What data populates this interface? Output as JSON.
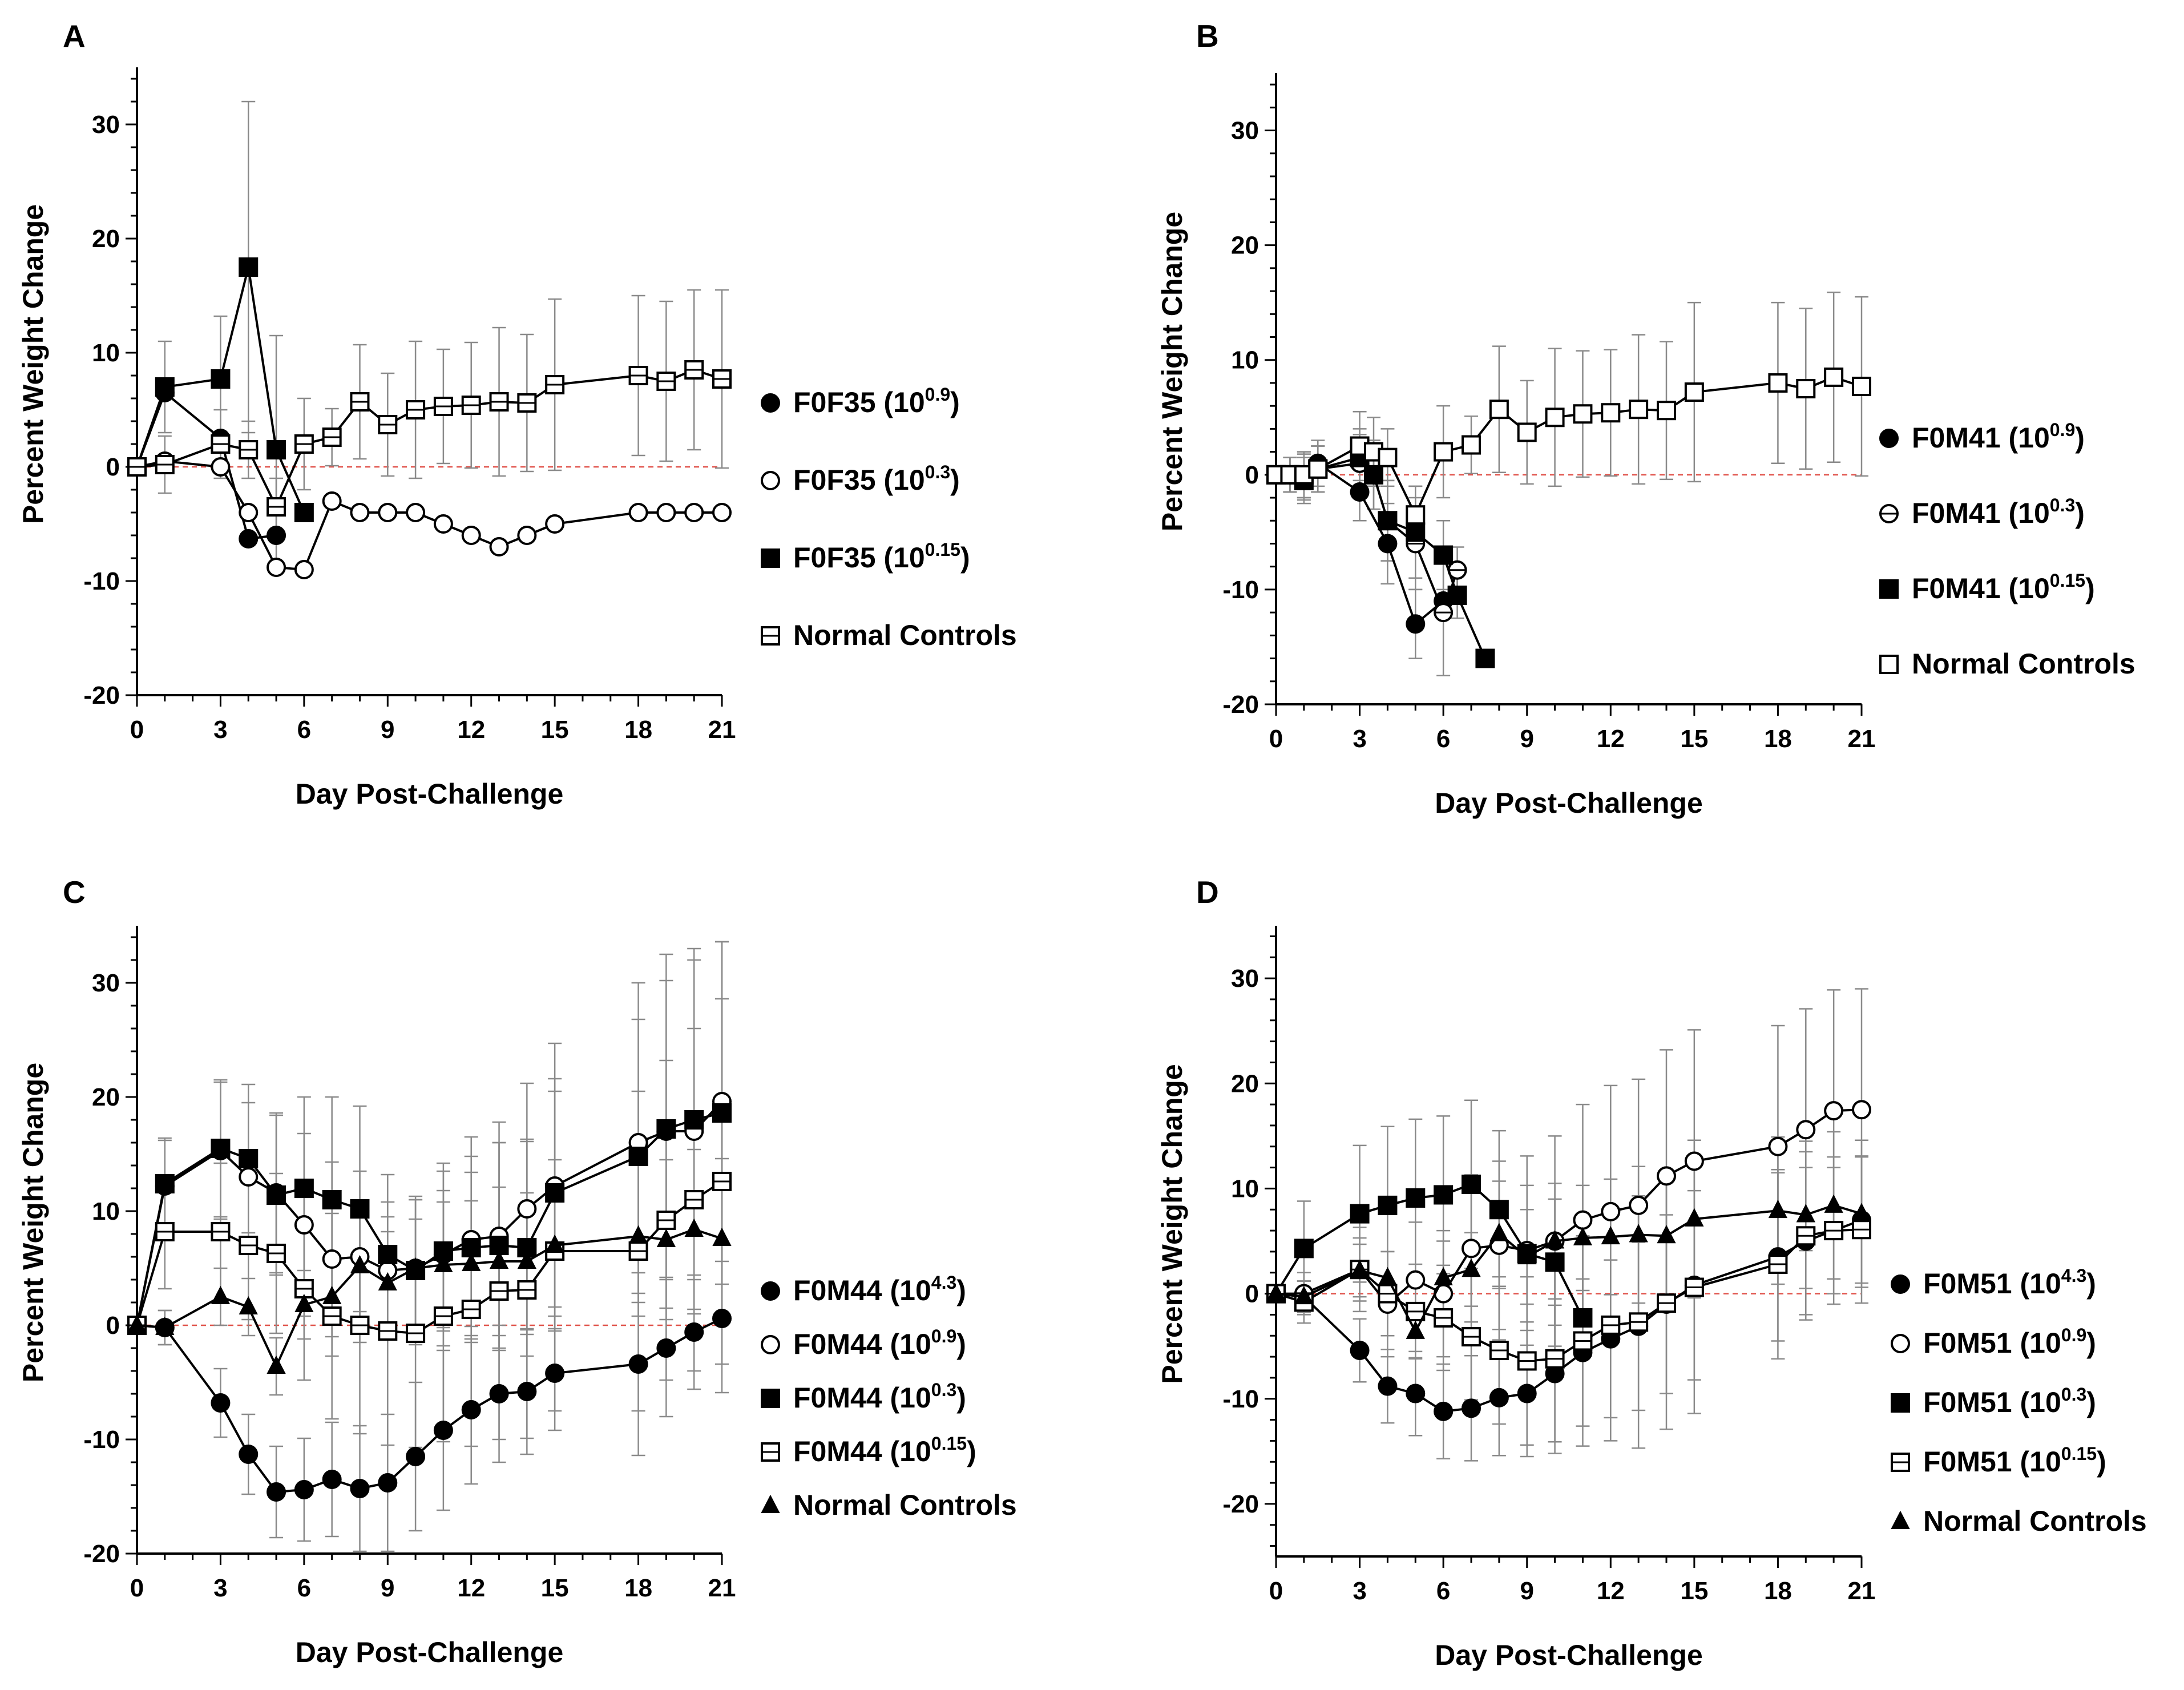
{
  "figure": {
    "panels": [
      "A",
      "B",
      "C",
      "D"
    ]
  },
  "chart_data": [
    {
      "panel": "A",
      "type": "line",
      "xlabel": "Day Post-Challenge",
      "ylabel": "Percent Weight Change",
      "xlim": [
        0,
        21
      ],
      "ylim": [
        -20,
        35
      ],
      "xticks": [
        0,
        3,
        6,
        9,
        12,
        15,
        18,
        21
      ],
      "yticks": [
        -20,
        -10,
        0,
        10,
        20,
        30
      ],
      "reference_line": 0,
      "series": [
        {
          "name": "F0F35",
          "exponent": "0.9",
          "marker": "filled-circle",
          "x": [
            0,
            1,
            3,
            4,
            5
          ],
          "y": [
            0,
            6.5,
            2.5,
            -6.3,
            -6
          ]
        },
        {
          "name": "F0F35",
          "exponent": "0.3",
          "marker": "open-circle",
          "x": [
            0,
            1,
            3,
            4,
            5,
            6,
            7,
            8,
            9,
            10,
            11,
            12,
            13,
            14,
            15,
            18,
            19,
            20,
            21
          ],
          "y": [
            0,
            0.5,
            0,
            -4,
            -8.8,
            -9,
            -3,
            -4,
            -4,
            -4,
            -5,
            -6,
            -7,
            -6,
            -5,
            -4,
            -4,
            -4,
            -4
          ],
          "err": [
            0,
            0,
            0,
            0,
            0,
            0,
            0,
            0,
            0,
            0,
            0,
            0,
            0,
            0,
            0,
            0,
            0,
            0,
            0
          ]
        },
        {
          "name": "F0F35",
          "exponent": "0.15",
          "marker": "filled-square",
          "x": [
            0,
            1,
            3,
            4,
            5,
            6
          ],
          "y": [
            0,
            7,
            7.7,
            17.5,
            1.5,
            -4
          ],
          "err": [
            0,
            4,
            5.5,
            14.5,
            10,
            0
          ]
        },
        {
          "name": "Normal Controls",
          "exponent": "",
          "marker": "crossed-square",
          "x": [
            0,
            1,
            3,
            4,
            5,
            6,
            7,
            8,
            9,
            10,
            11,
            12,
            13,
            14,
            15,
            18,
            19,
            20,
            21
          ],
          "y": [
            0,
            0.2,
            2,
            1.5,
            -3.5,
            2,
            2.6,
            5.7,
            3.7,
            5,
            5.3,
            5.4,
            5.7,
            5.6,
            7.2,
            8,
            7.5,
            8.5,
            7.7
          ],
          "err": [
            0,
            2.5,
            3,
            2.5,
            2.5,
            4,
            2.5,
            5,
            4.5,
            6,
            5,
            5.5,
            6.5,
            6,
            7.5,
            7,
            7,
            7,
            7.8
          ]
        }
      ]
    },
    {
      "panel": "B",
      "type": "line",
      "xlabel": "Day Post-Challenge",
      "ylabel": "Percent Weight Change",
      "xlim": [
        0,
        21
      ],
      "ylim": [
        -20,
        35
      ],
      "xticks": [
        0,
        3,
        6,
        9,
        12,
        15,
        18,
        21
      ],
      "yticks": [
        -20,
        -10,
        0,
        10,
        20,
        30
      ],
      "reference_line": 0,
      "series": [
        {
          "name": "F0M41",
          "exponent": "0.9",
          "marker": "filled-circle",
          "x": [
            0,
            0.5,
            1,
            1.5,
            3,
            4,
            5,
            6
          ],
          "y": [
            0,
            0,
            0,
            1,
            -1.5,
            -6,
            -13,
            -11
          ],
          "err": [
            0,
            1.5,
            2,
            2,
            2.5,
            3.5,
            3,
            0
          ]
        },
        {
          "name": "F0M41",
          "exponent": "0.3",
          "marker": "crossed-circle",
          "x": [
            0,
            0.5,
            1,
            1.5,
            3,
            3.5,
            4,
            5,
            6,
            6.5
          ],
          "y": [
            0,
            0,
            -0.2,
            0.5,
            1,
            0,
            -4,
            -6,
            -12,
            -8.3
          ],
          "err": [
            0,
            1.5,
            2,
            2,
            2.5,
            3,
            3.5,
            4,
            5.5,
            2
          ]
        },
        {
          "name": "F0M41",
          "exponent": "0.15",
          "marker": "filled-square",
          "x": [
            0,
            0.5,
            1,
            1.5,
            3,
            3.5,
            4,
            5,
            6,
            6.5,
            7.5
          ],
          "y": [
            0,
            0,
            -0.5,
            0.5,
            1.5,
            0,
            -4,
            -5,
            -7,
            -10.5,
            -16
          ],
          "err": [
            0,
            1.5,
            2,
            2,
            2.5,
            3,
            3.5,
            4,
            3,
            2,
            0
          ]
        },
        {
          "name": "Normal Controls",
          "exponent": "",
          "marker": "open-square",
          "x": [
            0,
            0.5,
            1,
            1.5,
            3,
            3.5,
            4,
            5,
            6,
            7,
            8,
            9,
            10,
            11,
            12,
            13,
            14,
            15,
            18,
            19,
            20,
            21
          ],
          "y": [
            0,
            0,
            0,
            0.5,
            2.5,
            2,
            1.5,
            -3.5,
            2,
            2.6,
            5.7,
            3.7,
            5,
            5.3,
            5.4,
            5.7,
            5.6,
            7.2,
            8,
            7.5,
            8.5,
            7.7
          ],
          "err": [
            0,
            1.5,
            2,
            2,
            3,
            3,
            2.5,
            2.5,
            4,
            2.5,
            5.5,
            4.5,
            6,
            5.5,
            5.5,
            6.5,
            6,
            7.8,
            7,
            7,
            7.4,
            7.8
          ]
        }
      ]
    },
    {
      "panel": "C",
      "type": "line",
      "xlabel": "Day Post-Challenge",
      "ylabel": "Percent Weight Change",
      "xlim": [
        0,
        21
      ],
      "ylim": [
        -20,
        35
      ],
      "xticks": [
        0,
        3,
        6,
        9,
        12,
        15,
        18,
        21
      ],
      "yticks": [
        -20,
        -10,
        0,
        10,
        20,
        30
      ],
      "reference_line": 0,
      "series": [
        {
          "name": "F0M44",
          "exponent": "4.3",
          "marker": "filled-circle",
          "x": [
            0,
            1,
            3,
            4,
            5,
            6,
            7,
            8,
            9,
            10,
            11,
            12,
            13,
            14,
            15,
            18,
            19,
            20,
            21
          ],
          "y": [
            0,
            -0.2,
            -6.8,
            -11.3,
            -14.6,
            -14.4,
            -13.5,
            -14.3,
            -13.8,
            -11.5,
            -9.2,
            -7.4,
            -6,
            -5.8,
            -4.2,
            -3.4,
            -2,
            -0.6,
            0.6
          ],
          "err": [
            0,
            1.5,
            3,
            3.5,
            4,
            4.5,
            5,
            5.5,
            6,
            6.5,
            7,
            6.5,
            6,
            5.5,
            5,
            8,
            6,
            5,
            6.5
          ]
        },
        {
          "name": "F0M44",
          "exponent": "0.9",
          "marker": "open-circle",
          "x": [
            0,
            1,
            3,
            4,
            5,
            6,
            7,
            8,
            9,
            10,
            11,
            12,
            13,
            14,
            15,
            18,
            19,
            20,
            21
          ],
          "y": [
            0,
            12.2,
            15.3,
            13,
            11.6,
            8.8,
            5.8,
            6,
            4.8,
            5,
            6.2,
            7.5,
            7.8,
            10.2,
            12.2,
            16,
            17,
            17,
            19.6
          ],
          "err": [
            0,
            4,
            6,
            6.5,
            7,
            8,
            8.5,
            7.5,
            6,
            6,
            8,
            9,
            10,
            11,
            12.5,
            14,
            15.5,
            16,
            14
          ]
        },
        {
          "name": "F0M44",
          "exponent": "0.3",
          "marker": "filled-square",
          "x": [
            0,
            1,
            3,
            4,
            5,
            6,
            7,
            8,
            9,
            10,
            11,
            12,
            13,
            14,
            15,
            18,
            19,
            20,
            21
          ],
          "y": [
            0,
            12.4,
            15.5,
            14.6,
            11.4,
            12,
            11,
            10.2,
            6.2,
            4.8,
            6.5,
            6.8,
            7,
            6.8,
            11.6,
            14.8,
            17.2,
            18,
            18.6
          ],
          "err": [
            0,
            4,
            6,
            6.5,
            7,
            8,
            9,
            9,
            7,
            6.5,
            7,
            8,
            9,
            9.5,
            10,
            12,
            13,
            14,
            15
          ]
        },
        {
          "name": "F0M44",
          "exponent": "0.15",
          "marker": "crossed-square",
          "x": [
            0,
            1,
            3,
            4,
            5,
            6,
            7,
            8,
            9,
            10,
            11,
            12,
            13,
            14,
            15,
            18,
            19,
            20,
            21
          ],
          "y": [
            0,
            8.2,
            8.2,
            7,
            6.3,
            3.2,
            0.8,
            0,
            -0.5,
            -0.7,
            0.8,
            1.4,
            3,
            3.1,
            6.5,
            6.5,
            9.2,
            11,
            12.6
          ],
          "err": [
            0,
            5,
            6,
            6.5,
            7,
            8,
            9,
            9.5,
            10,
            10,
            11,
            12,
            13,
            13,
            14,
            14,
            14,
            15,
            16
          ]
        },
        {
          "name": "Normal Controls",
          "exponent": "",
          "marker": "filled-triangle",
          "x": [
            0,
            1,
            3,
            4,
            5,
            6,
            7,
            8,
            9,
            10,
            11,
            12,
            13,
            14,
            15,
            18,
            19,
            20,
            21
          ],
          "y": [
            0,
            -0.2,
            2.5,
            1.6,
            -3.6,
            1.8,
            2.5,
            5.2,
            3.7,
            5,
            5.3,
            5.4,
            5.6,
            5.6,
            7,
            7.8,
            7.5,
            8.4,
            7.6
          ],
          "err": [
            0,
            1.5,
            2.5,
            2.5,
            2.5,
            3,
            3.5,
            5.5,
            4.5,
            6,
            5.5,
            5.5,
            6.5,
            6,
            7.5,
            7,
            7,
            7,
            7
          ]
        }
      ]
    },
    {
      "panel": "D",
      "type": "line",
      "xlabel": "Day Post-Challenge",
      "ylabel": "Percent Weight Change",
      "xlim": [
        0,
        21
      ],
      "ylim": [
        -25,
        35
      ],
      "xticks": [
        0,
        3,
        6,
        9,
        12,
        15,
        18,
        21
      ],
      "yticks": [
        -20,
        -10,
        0,
        10,
        20,
        30
      ],
      "reference_line": 0,
      "series": [
        {
          "name": "F0M51",
          "exponent": "4.3",
          "marker": "filled-circle",
          "x": [
            0,
            1,
            3,
            4,
            5,
            6,
            7,
            8,
            9,
            10,
            11,
            12,
            13,
            14,
            15,
            18,
            19,
            20,
            21
          ],
          "y": [
            0,
            -0.3,
            -5.4,
            -8.8,
            -9.5,
            -11.2,
            -10.9,
            -9.9,
            -9.5,
            -7.6,
            -5.6,
            -4.3,
            -3.1,
            -1,
            0.8,
            3.5,
            5,
            6,
            7
          ],
          "err": [
            0,
            1.5,
            3,
            3.5,
            4,
            4.5,
            5,
            5.5,
            6,
            6.5,
            7,
            7.5,
            8,
            8.5,
            9,
            8,
            7,
            6,
            6
          ]
        },
        {
          "name": "F0M51",
          "exponent": "0.9",
          "marker": "open-circle",
          "x": [
            0,
            1,
            3,
            4,
            5,
            6,
            7,
            8,
            9,
            10,
            11,
            12,
            13,
            14,
            15,
            18,
            19,
            20,
            21
          ],
          "y": [
            0,
            0,
            2.3,
            -1,
            1.3,
            0,
            4.3,
            4.6,
            4.1,
            5,
            7,
            7.8,
            8.4,
            11.2,
            12.6,
            14,
            15.6,
            17.4,
            17.5
          ],
          "err": [
            0,
            2,
            4,
            5,
            5.5,
            6,
            7,
            8,
            9,
            10,
            11,
            12,
            12,
            12,
            12.5,
            11.5,
            11.5,
            11.5,
            11.5
          ]
        },
        {
          "name": "F0M51",
          "exponent": "0.3",
          "marker": "filled-square",
          "x": [
            0,
            1,
            3,
            4,
            5,
            6,
            7,
            8,
            9,
            10,
            11
          ],
          "y": [
            0,
            4.3,
            7.6,
            8.4,
            9.1,
            9.4,
            10.4,
            8,
            3.8,
            3,
            -2.3
          ],
          "err": [
            0,
            4.5,
            6.5,
            7.5,
            7.5,
            7.5,
            8,
            7.5,
            6.5,
            6,
            0
          ]
        },
        {
          "name": "F0M51",
          "exponent": "0.15",
          "marker": "crossed-square",
          "x": [
            0,
            1,
            3,
            4,
            5,
            6,
            7,
            8,
            9,
            10,
            11,
            12,
            13,
            14,
            15,
            18,
            19,
            20,
            21
          ],
          "y": [
            0,
            -0.8,
            2.3,
            0,
            -1.7,
            -2.3,
            -4.1,
            -5.4,
            -6.4,
            -6.2,
            -4.5,
            -3,
            -2.7,
            -0.9,
            0.6,
            2.8,
            5.5,
            6,
            6.1
          ],
          "err": [
            0,
            2,
            3,
            4,
            4.5,
            5,
            6,
            7,
            8,
            9,
            10,
            11,
            12,
            12,
            12,
            9,
            8,
            7,
            7
          ]
        },
        {
          "name": "Normal Controls",
          "exponent": "",
          "marker": "filled-triangle",
          "x": [
            0,
            1,
            3,
            4,
            5,
            6,
            7,
            8,
            9,
            10,
            11,
            12,
            13,
            14,
            15,
            18,
            19,
            20,
            21
          ],
          "y": [
            0,
            -0.3,
            2.2,
            1.5,
            -3.6,
            1.5,
            2.3,
            5.7,
            3.5,
            5,
            5.3,
            5.4,
            5.6,
            5.5,
            7.1,
            7.9,
            7.5,
            8.4,
            7.6
          ],
          "err": [
            0,
            1.5,
            2.5,
            2.5,
            2.5,
            3.5,
            3.5,
            5,
            4.5,
            5.5,
            5,
            5.5,
            6.5,
            6,
            7.5,
            7,
            7,
            7,
            7
          ]
        }
      ]
    }
  ]
}
